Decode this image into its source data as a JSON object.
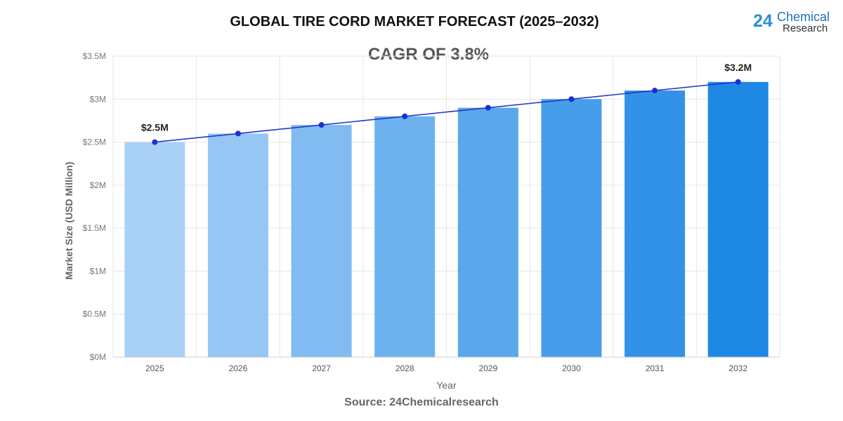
{
  "chart_data": {
    "type": "bar",
    "title": "GLOBAL TIRE CORD MARKET FORECAST (2025–2032)",
    "subtitle": "CAGR OF 3.8%",
    "xlabel": "Year",
    "ylabel": "Market Size (USD Million)",
    "categories": [
      "2025",
      "2026",
      "2027",
      "2028",
      "2029",
      "2030",
      "2031",
      "2032"
    ],
    "values": [
      2.5,
      2.6,
      2.7,
      2.8,
      2.9,
      3.0,
      3.1,
      3.2
    ],
    "line_overlay": true,
    "data_labels": {
      "0": "$2.5M",
      "7": "$3.2M"
    },
    "ylim": [
      0,
      3.5
    ],
    "yticks": [
      0,
      0.5,
      1,
      1.5,
      2,
      2.5,
      3,
      3.5
    ],
    "ytick_labels": [
      "$0M",
      "$0.5M",
      "$1M",
      "$1.5M",
      "$2M",
      "$2.5M",
      "$3M",
      "$3.5M"
    ],
    "grid": true,
    "colors": {
      "bar_start": "#a9d0f6",
      "bar_end": "#1e88e5",
      "line": "#2336c8",
      "point": "#1a2fd6"
    }
  },
  "source": "Source: 24Chemicalresearch",
  "logo": {
    "number": "24",
    "line1": "Chemical",
    "line2": "Research"
  }
}
